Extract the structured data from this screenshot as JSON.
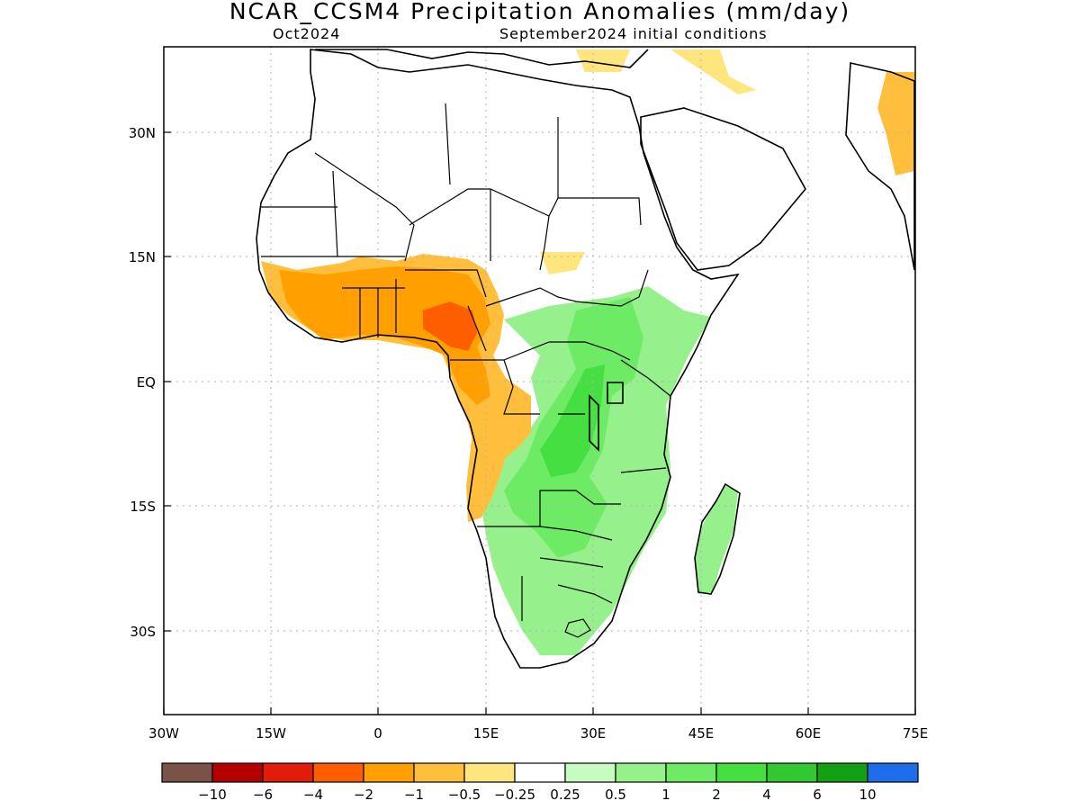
{
  "title": "NCAR_CCSM4 Precipitation Anomalies (mm/day)",
  "subtitle_left": "Oct2024",
  "subtitle_right": "September2024 initial conditions",
  "lat_ticks": [
    "30N",
    "15N",
    "EQ",
    "15S",
    "30S"
  ],
  "lon_ticks": [
    "30W",
    "15W",
    "0",
    "15E",
    "30E",
    "45E",
    "60E",
    "75E"
  ],
  "colorbar": {
    "colors": [
      "#7a5248",
      "#b40000",
      "#e11c0a",
      "#ff5e00",
      "#ff9f00",
      "#ffbf3c",
      "#ffe57d",
      "#ffffff",
      "#c6fcc0",
      "#96f08c",
      "#6eeb64",
      "#46df41",
      "#32c832",
      "#14a014",
      "#1e6eeb"
    ],
    "labels": [
      "−10",
      "−6",
      "−4",
      "−2",
      "−1",
      "−0.5",
      "−0.25",
      "0.25",
      "0.5",
      "1",
      "2",
      "4",
      "6",
      "10"
    ]
  },
  "anomaly_legend": {
    "dry_strong": "#ff5e00",
    "dry": "#ff9f00",
    "dry_weak": "#ffbf3c",
    "dry_min": "#ffe57d",
    "wet_min": "#c6fcc0",
    "wet": "#96f08c",
    "wet_mid": "#6eeb64",
    "wet_strong": "#46df41"
  }
}
